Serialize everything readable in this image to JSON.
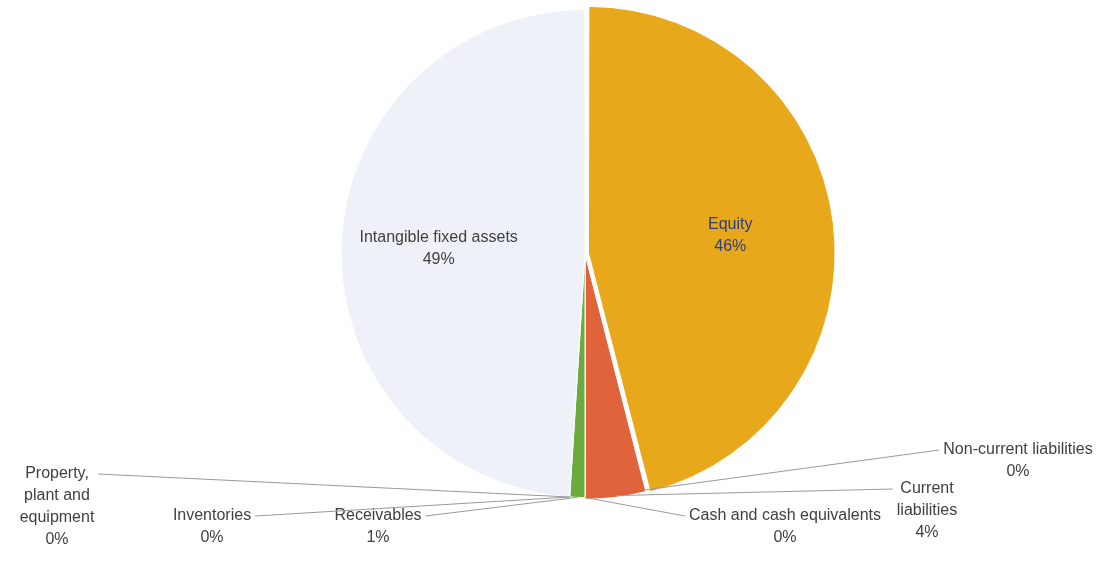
{
  "chart_data": {
    "type": "pie",
    "categories": [
      "Equity",
      "Non-current liabilities",
      "Current liabilities",
      "Cash and cash equivalents",
      "Receivables",
      "Inventories",
      "Property, plant and equipment",
      "Intangible fixed assets"
    ],
    "values": [
      46,
      0,
      4,
      0,
      1,
      0,
      0,
      49
    ],
    "value_labels": [
      "46%",
      "0%",
      "4%",
      "0%",
      "1%",
      "0%",
      "0%",
      "49%"
    ],
    "colors": [
      "#e8a81c",
      "#5b9bd5",
      "#e0633b",
      "#a5a5a5",
      "#6aaa3f",
      "#4472c4",
      "#264478",
      "#eef2f8"
    ],
    "legend": false
  }
}
